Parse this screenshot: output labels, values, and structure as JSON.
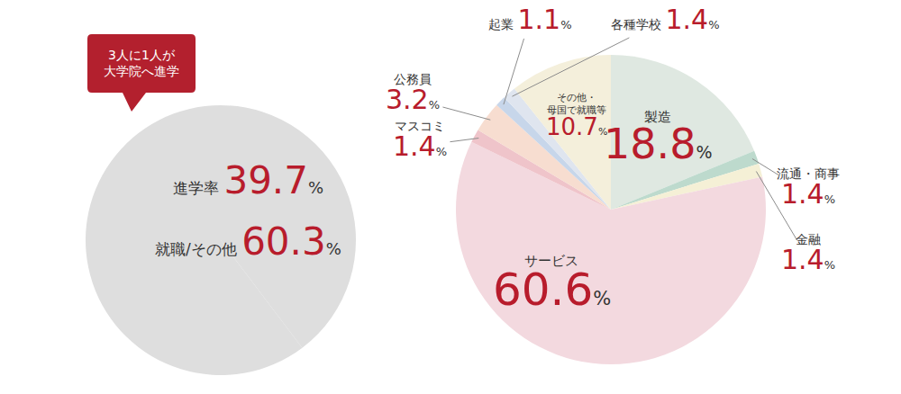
{
  "chart_data": [
    {
      "type": "pie",
      "categories": [
        "進学率",
        "就職/その他"
      ],
      "values": [
        39.7,
        60.3
      ],
      "value_labels": [
        "39.7%",
        "60.3%"
      ],
      "colors": [
        "#dedede",
        "#dedede"
      ],
      "data_labels": true,
      "annotations": [
        "3人に1人が\n大学院へ進学"
      ]
    },
    {
      "type": "pie",
      "categories": [
        "製造",
        "流通・商事",
        "金融",
        "サービス",
        "マスコミ",
        "公務員",
        "起業",
        "各種学校",
        "その他・\n母国で就職等"
      ],
      "values": [
        18.8,
        1.4,
        1.4,
        60.6,
        1.4,
        3.2,
        1.1,
        1.4,
        10.7
      ],
      "value_labels": [
        "18.8%",
        "1.4%",
        "1.4%",
        "60.6%",
        "1.4%",
        "3.2%",
        "1.1%",
        "1.4%",
        "10.7%"
      ],
      "colors": [
        "#dfe8e1",
        "#bddacd",
        "#f5f0d6",
        "#f3d9df",
        "#efc4ca",
        "#f7ddd0",
        "#c7d6ea",
        "#dfe5ef",
        "#f4efdb"
      ],
      "data_labels": true
    }
  ]
}
